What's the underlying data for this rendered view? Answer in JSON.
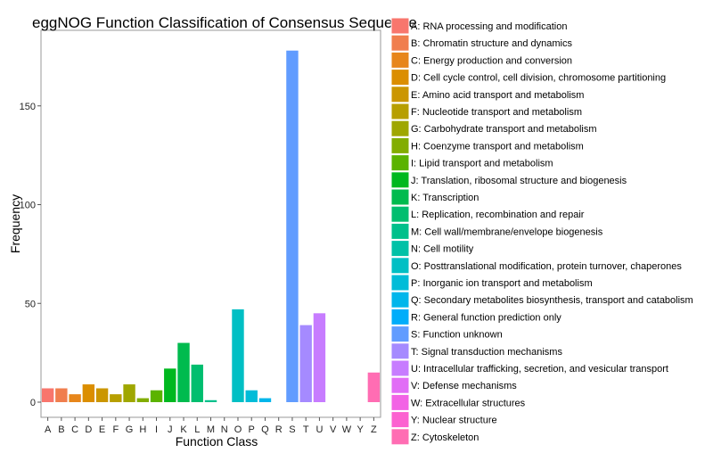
{
  "chart_data": {
    "type": "bar",
    "title": "eggNOG Function Classification of Consensus Sequence",
    "xlabel": "Function Class",
    "ylabel": "Frequency",
    "ylim": [
      0,
      185
    ],
    "yticks": [
      0,
      50,
      100,
      150
    ],
    "grid": false,
    "legend_position": "right",
    "categories": [
      "A",
      "B",
      "C",
      "D",
      "E",
      "F",
      "G",
      "H",
      "I",
      "J",
      "K",
      "L",
      "M",
      "N",
      "O",
      "P",
      "Q",
      "R",
      "S",
      "T",
      "U",
      "V",
      "W",
      "Y",
      "Z"
    ],
    "values": [
      7,
      7,
      4,
      9,
      7,
      4,
      9,
      2,
      6,
      17,
      30,
      19,
      1,
      0,
      47,
      6,
      2,
      0,
      178,
      39,
      45,
      0,
      0,
      0,
      15
    ],
    "colors": [
      "#F8766D",
      "#F07E4E",
      "#E7861B",
      "#DB8E00",
      "#CB9600",
      "#B79F00",
      "#9FA700",
      "#82AD00",
      "#5BB300",
      "#00B81F",
      "#00BB4E",
      "#00BE6F",
      "#00C08B",
      "#00C1A7",
      "#00BFC4",
      "#00BCD8",
      "#00B6EB",
      "#00ADFA",
      "#619CFF",
      "#A58AFF",
      "#C77CFF",
      "#E16DF6",
      "#F263E5",
      "#FC61D0",
      "#FF6DB3"
    ],
    "legend": [
      "A: RNA processing and modification",
      "B: Chromatin structure and dynamics",
      "C: Energy production and conversion",
      "D: Cell cycle control, cell division, chromosome partitioning",
      "E: Amino acid transport and metabolism",
      "F: Nucleotide transport and metabolism",
      "G: Carbohydrate transport and metabolism",
      "H: Coenzyme transport and metabolism",
      "I: Lipid transport and metabolism",
      "J: Translation, ribosomal structure and biogenesis",
      "K: Transcription",
      "L: Replication, recombination and repair",
      "M: Cell wall/membrane/envelope biogenesis",
      "N: Cell motility",
      "O: Posttranslational modification, protein turnover, chaperones",
      "P: Inorganic ion transport and metabolism",
      "Q: Secondary metabolites biosynthesis, transport and catabolism",
      "R: General function prediction only",
      "S: Function unknown",
      "T: Signal transduction mechanisms",
      "U: Intracellular trafficking, secretion, and vesicular transport",
      "V: Defense mechanisms",
      "W: Extracellular structures",
      "Y: Nuclear structure",
      "Z: Cytoskeleton"
    ]
  }
}
